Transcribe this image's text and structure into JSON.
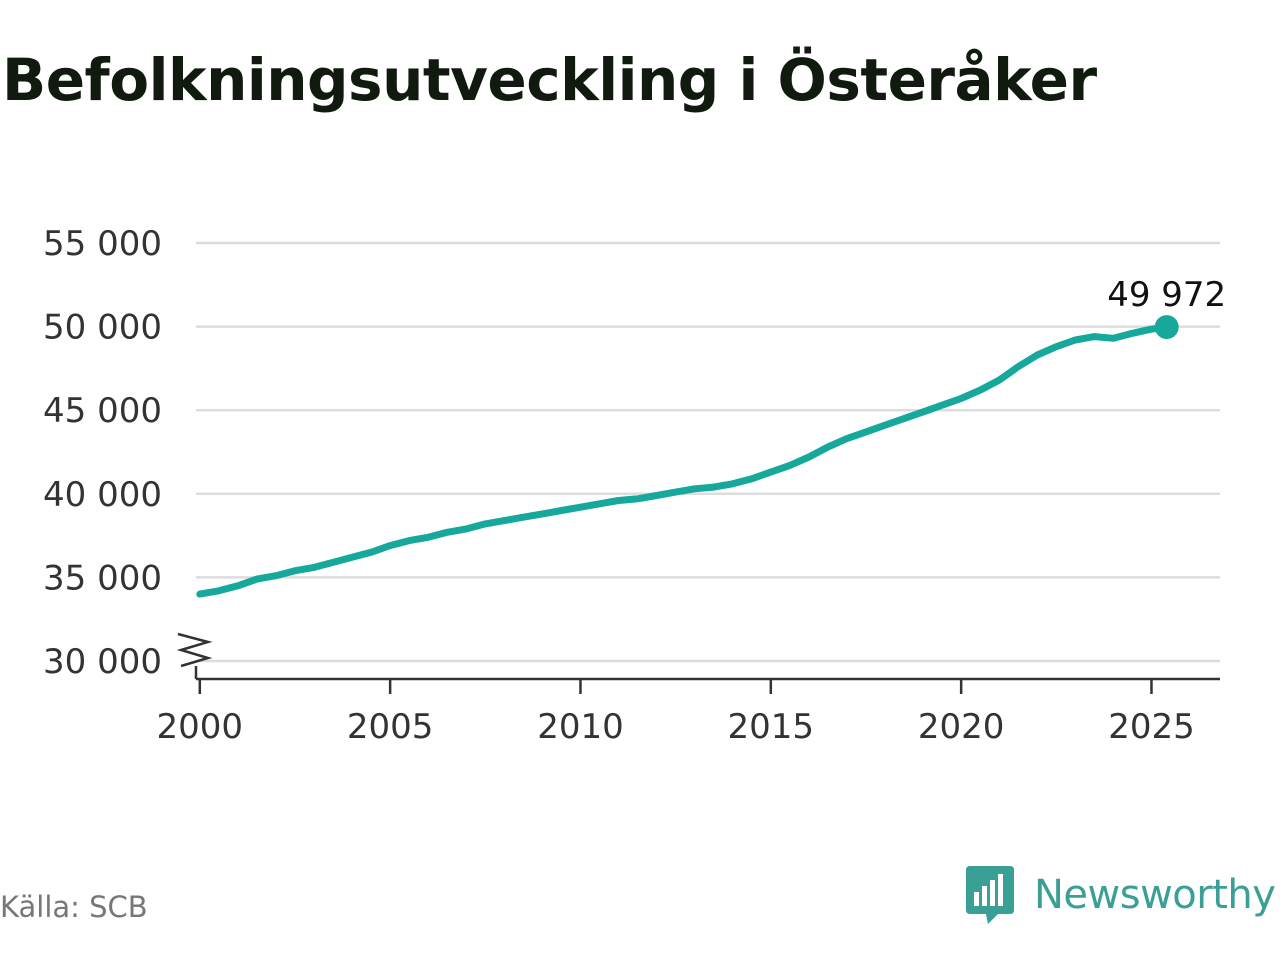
{
  "title": "Befolkningsutveckling i Österåker",
  "source": "Källa: SCB",
  "brand": {
    "name": "Newsworthy",
    "icon": "bar-chart-speech-bubble-icon"
  },
  "colors": {
    "line": "#16a89a",
    "grid": "#dddddd",
    "axis": "#333333",
    "text": "#333333",
    "brand": "#3a9f95"
  },
  "chart_data": {
    "type": "line",
    "title": "Befolkningsutveckling i Österåker",
    "xlabel": "",
    "ylabel": "",
    "xlim": [
      1999.9,
      2026.8
    ],
    "ylim": [
      30000,
      55000
    ],
    "y_axis_break": true,
    "x_ticks": [
      2000,
      2005,
      2010,
      2015,
      2020,
      2025
    ],
    "x_tick_labels": [
      "2000",
      "2005",
      "2010",
      "2015",
      "2020",
      "2025"
    ],
    "y_ticks": [
      30000,
      35000,
      40000,
      45000,
      50000,
      55000
    ],
    "y_tick_labels": [
      "30 000",
      "35 000",
      "40 000",
      "45 000",
      "50 000",
      "55 000"
    ],
    "grid": true,
    "legend": "none",
    "series": [
      {
        "x": [
          2000.0,
          2000.5,
          2001.0,
          2001.5,
          2002.0,
          2002.5,
          2003.0,
          2003.5,
          2004.0,
          2004.5,
          2005.0,
          2005.5,
          2006.0,
          2006.5,
          2007.0,
          2007.5,
          2008.0,
          2008.5,
          2009.0,
          2009.5,
          2010.0,
          2010.5,
          2011.0,
          2011.5,
          2012.0,
          2012.5,
          2013.0,
          2013.5,
          2014.0,
          2014.5,
          2015.0,
          2015.5,
          2016.0,
          2016.5,
          2017.0,
          2017.5,
          2018.0,
          2018.5,
          2019.0,
          2019.5,
          2020.0,
          2020.5,
          2021.0,
          2021.5,
          2022.0,
          2022.5,
          2023.0,
          2023.5,
          2024.0,
          2024.5,
          2025.0,
          2025.4
        ],
        "y": [
          34000,
          34200,
          34500,
          34900,
          35100,
          35400,
          35600,
          35900,
          36200,
          36500,
          36900,
          37200,
          37400,
          37700,
          37900,
          38200,
          38400,
          38600,
          38800,
          39000,
          39200,
          39400,
          39600,
          39700,
          39900,
          40100,
          40300,
          40400,
          40600,
          40900,
          41300,
          41700,
          42200,
          42800,
          43300,
          43700,
          44100,
          44500,
          44900,
          45300,
          45700,
          46200,
          46800,
          47600,
          48300,
          48800,
          49200,
          49400,
          49300,
          49600,
          49850,
          49972
        ]
      }
    ],
    "annotations": [
      {
        "x": 2025.4,
        "y": 49972,
        "text": "49 972"
      }
    ]
  }
}
